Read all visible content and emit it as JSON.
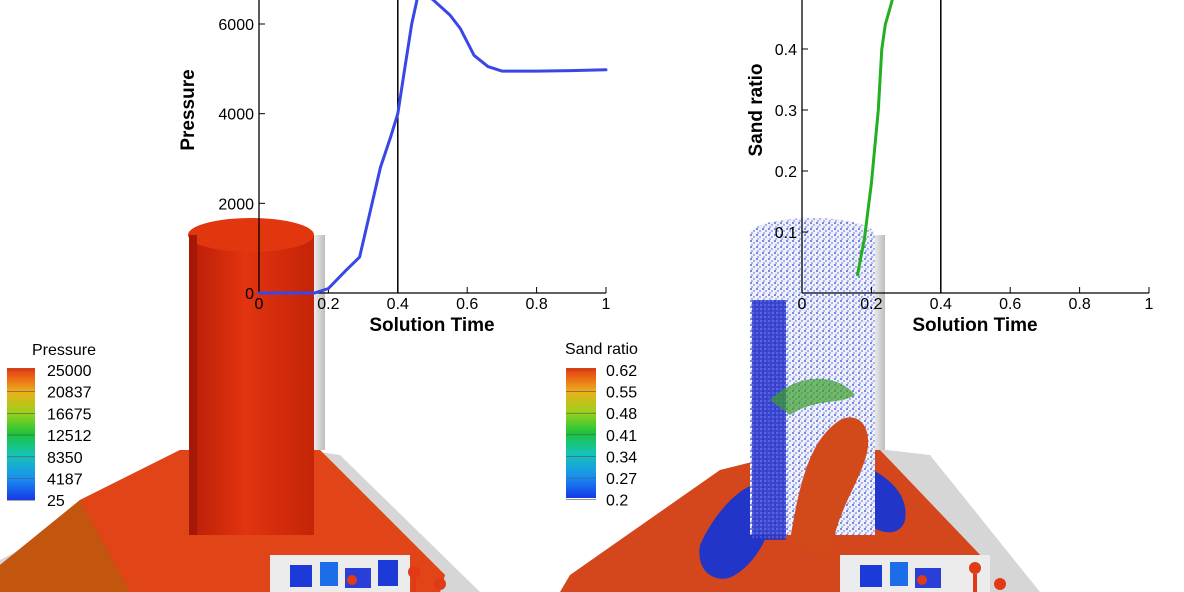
{
  "chart_data": [
    {
      "type": "line",
      "xlabel": "Solution Time",
      "ylabel": "Pressure",
      "xlim": [
        0,
        1
      ],
      "ylim": [
        0,
        6700
      ],
      "x_ticks": [
        "0",
        "0.2",
        "0.4",
        "0.6",
        "0.8",
        "1"
      ],
      "y_ticks": [
        "0",
        "2000",
        "4000",
        "6000"
      ],
      "marker_x": 0.4,
      "series": [
        {
          "color": "#3a46e6",
          "points": [
            [
              0,
              0
            ],
            [
              0.1,
              0
            ],
            [
              0.16,
              0
            ],
            [
              0.2,
              100
            ],
            [
              0.25,
              500
            ],
            [
              0.29,
              800
            ],
            [
              0.32,
              1800
            ],
            [
              0.35,
              2800
            ],
            [
              0.38,
              3500
            ],
            [
              0.4,
              4000
            ],
            [
              0.42,
              5000
            ],
            [
              0.44,
              6000
            ],
            [
              0.46,
              6700
            ],
            [
              0.5,
              6550
            ],
            [
              0.55,
              6200
            ],
            [
              0.58,
              5900
            ],
            [
              0.62,
              5300
            ],
            [
              0.66,
              5050
            ],
            [
              0.7,
              4950
            ],
            [
              0.8,
              4950
            ],
            [
              0.9,
              4960
            ],
            [
              1.0,
              4980
            ]
          ]
        }
      ],
      "legend": {
        "title": "Pressure",
        "labels": [
          "25000",
          "20837",
          "16675",
          "12512",
          "8350",
          "4187",
          "25"
        ],
        "colors": [
          "#e8380f",
          "#ecae1b",
          "#9bd21a",
          "#1cc43c",
          "#14c4b8",
          "#1a8ef0",
          "#1638e8"
        ]
      }
    },
    {
      "type": "line",
      "xlabel": "Solution Time",
      "ylabel": "Sand ratio",
      "xlim": [
        0,
        1
      ],
      "ylim": [
        0,
        0.48
      ],
      "x_ticks": [
        "0",
        "0.2",
        "0.4",
        "0.6",
        "0.8",
        "1"
      ],
      "y_ticks": [
        "0.1",
        "0.2",
        "0.3",
        "0.4"
      ],
      "marker_x": 0.4,
      "series": [
        {
          "color": "#22b022",
          "points": [
            [
              0.16,
              0.03
            ],
            [
              0.18,
              0.09
            ],
            [
              0.2,
              0.18
            ],
            [
              0.22,
              0.3
            ],
            [
              0.23,
              0.4
            ],
            [
              0.24,
              0.44
            ],
            [
              0.25,
              0.46
            ],
            [
              0.26,
              0.48
            ]
          ]
        }
      ],
      "legend": {
        "title": "Sand ratio",
        "labels": [
          "0.62",
          "0.55",
          "0.48",
          "0.41",
          "0.34",
          "0.27",
          "0.2"
        ],
        "colors": [
          "#e8380f",
          "#ecae1b",
          "#9bd21a",
          "#1cc43c",
          "#14c4b8",
          "#1a8ef0",
          "#1638e8"
        ]
      }
    }
  ]
}
